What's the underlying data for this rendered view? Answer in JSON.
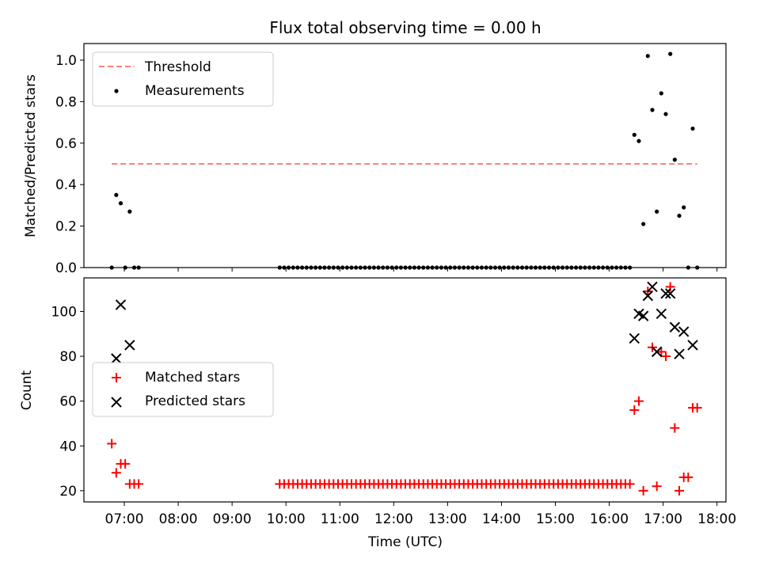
{
  "title": "Flux total observing time = 0.00 h",
  "xlabel": "Time (UTC)",
  "x_tick_labels": [
    "07:00",
    "08:00",
    "09:00",
    "10:00",
    "11:00",
    "12:00",
    "13:00",
    "14:00",
    "15:00",
    "16:00",
    "17:00",
    "18:00"
  ],
  "colors": {
    "threshold": "#ff7f7f",
    "measurements": "#000000",
    "matched": "#ff0000",
    "predicted": "#000000"
  },
  "chart_data": [
    {
      "type": "scatter",
      "ylabel": "Matched/Predicted stars",
      "xlim": [
        "06:15",
        "18:10"
      ],
      "ylim": [
        0,
        1.08
      ],
      "y_ticks": [
        "0.0",
        "0.2",
        "0.4",
        "0.6",
        "0.8",
        "1.0"
      ],
      "legend": {
        "placement": "upper left",
        "entries": [
          "Threshold",
          "Measurements"
        ]
      },
      "threshold": {
        "name": "Threshold",
        "y": 0.5,
        "x_start": "06:46",
        "x_end": "17:38"
      },
      "series": [
        {
          "name": "Measurements",
          "points": [
            [
              "06:46",
              0.0
            ],
            [
              "06:51",
              0.35
            ],
            [
              "06:56",
              0.31
            ],
            [
              "07:01",
              0.0
            ],
            [
              "07:06",
              0.27
            ],
            [
              "07:11",
              0.0
            ],
            [
              "07:16",
              0.0
            ],
            [
              "09:53",
              0.0
            ],
            [
              "09:58",
              0.0
            ],
            [
              "10:03",
              0.0
            ],
            [
              "10:08",
              0.0
            ],
            [
              "10:13",
              0.0
            ],
            [
              "10:18",
              0.0
            ],
            [
              "10:23",
              0.0
            ],
            [
              "10:28",
              0.0
            ],
            [
              "10:33",
              0.0
            ],
            [
              "10:38",
              0.0
            ],
            [
              "10:43",
              0.0
            ],
            [
              "10:48",
              0.0
            ],
            [
              "10:53",
              0.0
            ],
            [
              "10:58",
              0.0
            ],
            [
              "11:03",
              0.0
            ],
            [
              "11:08",
              0.0
            ],
            [
              "11:13",
              0.0
            ],
            [
              "11:18",
              0.0
            ],
            [
              "11:23",
              0.0
            ],
            [
              "11:28",
              0.0
            ],
            [
              "11:33",
              0.0
            ],
            [
              "11:38",
              0.0
            ],
            [
              "11:43",
              0.0
            ],
            [
              "11:48",
              0.0
            ],
            [
              "11:53",
              0.0
            ],
            [
              "11:58",
              0.0
            ],
            [
              "12:03",
              0.0
            ],
            [
              "12:08",
              0.0
            ],
            [
              "12:13",
              0.0
            ],
            [
              "12:18",
              0.0
            ],
            [
              "12:23",
              0.0
            ],
            [
              "12:28",
              0.0
            ],
            [
              "12:33",
              0.0
            ],
            [
              "12:38",
              0.0
            ],
            [
              "12:43",
              0.0
            ],
            [
              "12:48",
              0.0
            ],
            [
              "12:53",
              0.0
            ],
            [
              "12:58",
              0.0
            ],
            [
              "13:03",
              0.0
            ],
            [
              "13:08",
              0.0
            ],
            [
              "13:13",
              0.0
            ],
            [
              "13:18",
              0.0
            ],
            [
              "13:23",
              0.0
            ],
            [
              "13:28",
              0.0
            ],
            [
              "13:33",
              0.0
            ],
            [
              "13:38",
              0.0
            ],
            [
              "13:43",
              0.0
            ],
            [
              "13:48",
              0.0
            ],
            [
              "13:53",
              0.0
            ],
            [
              "13:58",
              0.0
            ],
            [
              "14:03",
              0.0
            ],
            [
              "14:08",
              0.0
            ],
            [
              "14:13",
              0.0
            ],
            [
              "14:18",
              0.0
            ],
            [
              "14:23",
              0.0
            ],
            [
              "14:28",
              0.0
            ],
            [
              "14:33",
              0.0
            ],
            [
              "14:38",
              0.0
            ],
            [
              "14:43",
              0.0
            ],
            [
              "14:48",
              0.0
            ],
            [
              "14:53",
              0.0
            ],
            [
              "14:58",
              0.0
            ],
            [
              "15:03",
              0.0
            ],
            [
              "15:08",
              0.0
            ],
            [
              "15:13",
              0.0
            ],
            [
              "15:18",
              0.0
            ],
            [
              "15:23",
              0.0
            ],
            [
              "15:28",
              0.0
            ],
            [
              "15:33",
              0.0
            ],
            [
              "15:38",
              0.0
            ],
            [
              "15:43",
              0.0
            ],
            [
              "15:48",
              0.0
            ],
            [
              "15:53",
              0.0
            ],
            [
              "15:58",
              0.0
            ],
            [
              "16:03",
              0.0
            ],
            [
              "16:08",
              0.0
            ],
            [
              "16:13",
              0.0
            ],
            [
              "16:18",
              0.0
            ],
            [
              "16:23",
              0.0
            ],
            [
              "16:28",
              0.64
            ],
            [
              "16:33",
              0.61
            ],
            [
              "16:38",
              0.21
            ],
            [
              "16:43",
              1.02
            ],
            [
              "16:48",
              0.76
            ],
            [
              "16:53",
              0.27
            ],
            [
              "16:58",
              0.84
            ],
            [
              "17:03",
              0.74
            ],
            [
              "17:08",
              1.03
            ],
            [
              "17:13",
              0.52
            ],
            [
              "17:18",
              0.25
            ],
            [
              "17:23",
              0.29
            ],
            [
              "17:28",
              0.0
            ],
            [
              "17:33",
              0.67
            ],
            [
              "17:38",
              0.0
            ]
          ]
        }
      ]
    },
    {
      "type": "scatter",
      "ylabel": "Count",
      "xlabel": "Time (UTC)",
      "xlim": [
        "06:15",
        "18:10"
      ],
      "ylim": [
        15,
        115
      ],
      "y_ticks": [
        "20",
        "40",
        "60",
        "80",
        "100"
      ],
      "legend": {
        "placement": "center left",
        "entries": [
          "Matched stars",
          "Predicted stars"
        ]
      },
      "series": [
        {
          "name": "Matched stars",
          "marker": "plus",
          "points": [
            [
              "06:46",
              41
            ],
            [
              "06:51",
              28
            ],
            [
              "06:56",
              32
            ],
            [
              "07:01",
              32
            ],
            [
              "07:06",
              23
            ],
            [
              "07:11",
              23
            ],
            [
              "07:16",
              23
            ],
            [
              "09:53",
              23
            ],
            [
              "09:58",
              23
            ],
            [
              "10:03",
              23
            ],
            [
              "10:08",
              23
            ],
            [
              "10:13",
              23
            ],
            [
              "10:18",
              23
            ],
            [
              "10:23",
              23
            ],
            [
              "10:28",
              23
            ],
            [
              "10:33",
              23
            ],
            [
              "10:38",
              23
            ],
            [
              "10:43",
              23
            ],
            [
              "10:48",
              23
            ],
            [
              "10:53",
              23
            ],
            [
              "10:58",
              23
            ],
            [
              "11:03",
              23
            ],
            [
              "11:08",
              23
            ],
            [
              "11:13",
              23
            ],
            [
              "11:18",
              23
            ],
            [
              "11:23",
              23
            ],
            [
              "11:28",
              23
            ],
            [
              "11:33",
              23
            ],
            [
              "11:38",
              23
            ],
            [
              "11:43",
              23
            ],
            [
              "11:48",
              23
            ],
            [
              "11:53",
              23
            ],
            [
              "11:58",
              23
            ],
            [
              "12:03",
              23
            ],
            [
              "12:08",
              23
            ],
            [
              "12:13",
              23
            ],
            [
              "12:18",
              23
            ],
            [
              "12:23",
              23
            ],
            [
              "12:28",
              23
            ],
            [
              "12:33",
              23
            ],
            [
              "12:38",
              23
            ],
            [
              "12:43",
              23
            ],
            [
              "12:48",
              23
            ],
            [
              "12:53",
              23
            ],
            [
              "12:58",
              23
            ],
            [
              "13:03",
              23
            ],
            [
              "13:08",
              23
            ],
            [
              "13:13",
              23
            ],
            [
              "13:18",
              23
            ],
            [
              "13:23",
              23
            ],
            [
              "13:28",
              23
            ],
            [
              "13:33",
              23
            ],
            [
              "13:38",
              23
            ],
            [
              "13:43",
              23
            ],
            [
              "13:48",
              23
            ],
            [
              "13:53",
              23
            ],
            [
              "13:58",
              23
            ],
            [
              "14:03",
              23
            ],
            [
              "14:08",
              23
            ],
            [
              "14:13",
              23
            ],
            [
              "14:18",
              23
            ],
            [
              "14:23",
              23
            ],
            [
              "14:28",
              23
            ],
            [
              "14:33",
              23
            ],
            [
              "14:38",
              23
            ],
            [
              "14:43",
              23
            ],
            [
              "14:48",
              23
            ],
            [
              "14:53",
              23
            ],
            [
              "14:58",
              23
            ],
            [
              "15:03",
              23
            ],
            [
              "15:08",
              23
            ],
            [
              "15:13",
              23
            ],
            [
              "15:18",
              23
            ],
            [
              "15:23",
              23
            ],
            [
              "15:28",
              23
            ],
            [
              "15:33",
              23
            ],
            [
              "15:38",
              23
            ],
            [
              "15:43",
              23
            ],
            [
              "15:48",
              23
            ],
            [
              "15:53",
              23
            ],
            [
              "15:58",
              23
            ],
            [
              "16:03",
              23
            ],
            [
              "16:08",
              23
            ],
            [
              "16:13",
              23
            ],
            [
              "16:18",
              23
            ],
            [
              "16:23",
              23
            ],
            [
              "16:28",
              56
            ],
            [
              "16:33",
              60
            ],
            [
              "16:38",
              20
            ],
            [
              "16:43",
              109
            ],
            [
              "16:48",
              84
            ],
            [
              "16:53",
              22
            ],
            [
              "16:58",
              82
            ],
            [
              "17:03",
              80
            ],
            [
              "17:08",
              111
            ],
            [
              "17:13",
              48
            ],
            [
              "17:18",
              20
            ],
            [
              "17:23",
              26
            ],
            [
              "17:28",
              26
            ],
            [
              "17:33",
              57
            ],
            [
              "17:38",
              57
            ]
          ]
        },
        {
          "name": "Predicted stars",
          "marker": "x",
          "points": [
            [
              "06:51",
              79
            ],
            [
              "06:56",
              103
            ],
            [
              "07:06",
              85
            ],
            [
              "16:28",
              88
            ],
            [
              "16:33",
              99
            ],
            [
              "16:38",
              98
            ],
            [
              "16:43",
              107
            ],
            [
              "16:48",
              111
            ],
            [
              "16:53",
              82
            ],
            [
              "16:58",
              99
            ],
            [
              "17:03",
              108
            ],
            [
              "17:08",
              108
            ],
            [
              "17:13",
              93
            ],
            [
              "17:18",
              81
            ],
            [
              "17:23",
              91
            ],
            [
              "17:33",
              85
            ]
          ]
        }
      ]
    }
  ]
}
